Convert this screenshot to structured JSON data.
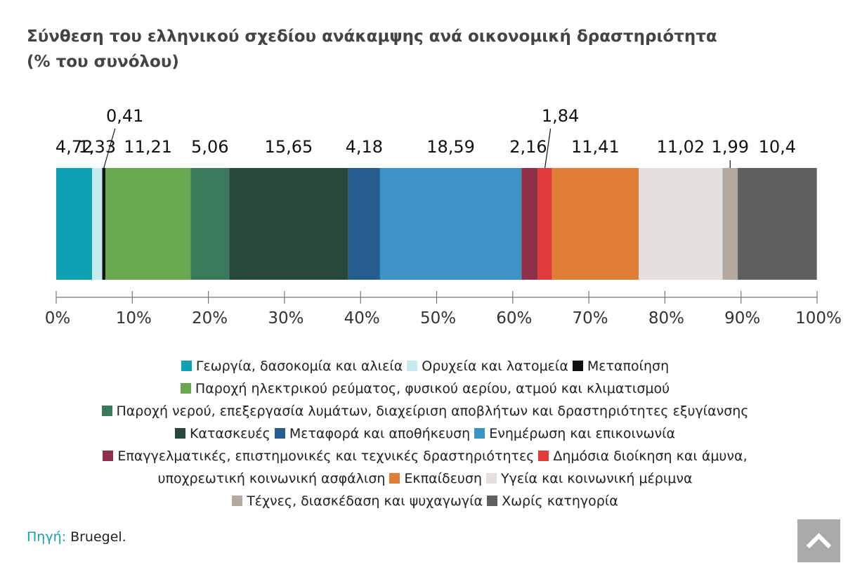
{
  "title_line1": "Σύνθεση του ελληνικού σχεδίου ανάκαμψης ανά οικονομική δραστηριότητα",
  "title_line2": "(% του συνόλου)",
  "chart_data": {
    "type": "stacked-bar-100",
    "orientation": "horizontal",
    "xlim": [
      0,
      100
    ],
    "x_ticks": [
      "0%",
      "10%",
      "20%",
      "30%",
      "40%",
      "50%",
      "60%",
      "70%",
      "80%",
      "90%",
      "100%"
    ],
    "segments": [
      {
        "label": "4,72",
        "value": 4.72,
        "color": "#0ca2b4",
        "name": "Γεωργία, δασοκομία και αλιεία"
      },
      {
        "label": "1,33",
        "value": 1.33,
        "color": "#c5ebef",
        "name": "Ορυχεία και λατομεία"
      },
      {
        "label": "0,41",
        "value": 0.41,
        "color": "#111111",
        "name": "Μεταποίηση"
      },
      {
        "label": "11,21",
        "value": 11.21,
        "color": "#6aa84f",
        "name": "Παροχή ηλεκτρικού ρεύματος, φυσικού αερίου, ατμού και κλιματισμού"
      },
      {
        "label": "5,06",
        "value": 5.06,
        "color": "#3a7a5a",
        "name": "Παροχή νερού, επεξεργασία λυμάτων, διαχείριση αποβλήτων και δραστηριότητες εξυγίανσης"
      },
      {
        "label": "15,65",
        "value": 15.65,
        "color": "#27493a",
        "name": "Κατασκευές"
      },
      {
        "label": "4,18",
        "value": 4.18,
        "color": "#265d8f",
        "name": "Μεταφορά και αποθήκευση"
      },
      {
        "label": "18,59",
        "value": 18.59,
        "color": "#3b93c6",
        "name": "Ενημέρωση και επικοινωνία"
      },
      {
        "label": "2,16",
        "value": 2.16,
        "color": "#8e3148",
        "name": "Επαγγελματικές, επιστημονικές και τεχνικές δραστηριότητες"
      },
      {
        "label": "1,84",
        "value": 1.84,
        "color": "#e23b3b",
        "name": "Δημόσια διοίκηση και άμυνα, υποχρεωτική κοινωνική ασφάλιση"
      },
      {
        "label": "11,41",
        "value": 11.41,
        "color": "#de7f35",
        "name": "Εκπαίδευση"
      },
      {
        "label": "11,02",
        "value": 11.02,
        "color": "#e4e0de",
        "name": "Υγεία και κοινωνική μέριμνα"
      },
      {
        "label": "1,99",
        "value": 1.99,
        "color": "#b3a99e",
        "name": "Τέχνες, διασκέδαση και ψυχαγωγία"
      },
      {
        "label": "10,4",
        "value": 10.4,
        "color": "#5f5f5f",
        "name": "Χωρίς κατηγορία"
      }
    ]
  },
  "legend_lines": [
    [
      {
        "label": "Γεωργία, δασοκομία και αλιεία",
        "color": "#0ca2b4"
      },
      {
        "label": "Ορυχεία και λατομεία",
        "color": "#c5ebef"
      },
      {
        "label": "Μεταποίηση",
        "color": "#111111"
      }
    ],
    [
      {
        "label": "Παροχή ηλεκτρικού ρεύματος, φυσικού αερίου, ατμού και κλιματισμού",
        "color": "#6aa84f"
      }
    ],
    [
      {
        "label": "Παροχή νερού, επεξεργασία λυμάτων, διαχείριση αποβλήτων και δραστηριότητες εξυγίανσης",
        "color": "#3a7a5a"
      }
    ],
    [
      {
        "label": "Κατασκευές",
        "color": "#27493a"
      },
      {
        "label": "Μεταφορά και αποθήκευση",
        "color": "#265d8f"
      },
      {
        "label": "Ενημέρωση και επικοινωνία",
        "color": "#3b93c6"
      }
    ],
    [
      {
        "label": "Επαγγελματικές, επιστημονικές και τεχνικές δραστηριότητες",
        "color": "#8e3148"
      },
      {
        "label": "Δημόσια διοίκηση και άμυνα,",
        "color": "#e23b3b"
      }
    ],
    [
      {
        "label": "υποχρεωτική κοινωνική ασφάλιση",
        "color": null
      },
      {
        "label": "Εκπαίδευση",
        "color": "#de7f35"
      },
      {
        "label": "Υγεία και κοινωνική μέριμνα",
        "color": "#e4e0de"
      }
    ],
    [
      {
        "label": "Τέχνες, διασκέδαση και ψυχαγωγία",
        "color": "#b3a99e"
      },
      {
        "label": "Χωρίς κατηγορία",
        "color": "#5f5f5f"
      }
    ]
  ],
  "source": {
    "label": "Πηγή:",
    "text": "Bruegel."
  },
  "scroll_top_icon": "chevron-up-icon"
}
